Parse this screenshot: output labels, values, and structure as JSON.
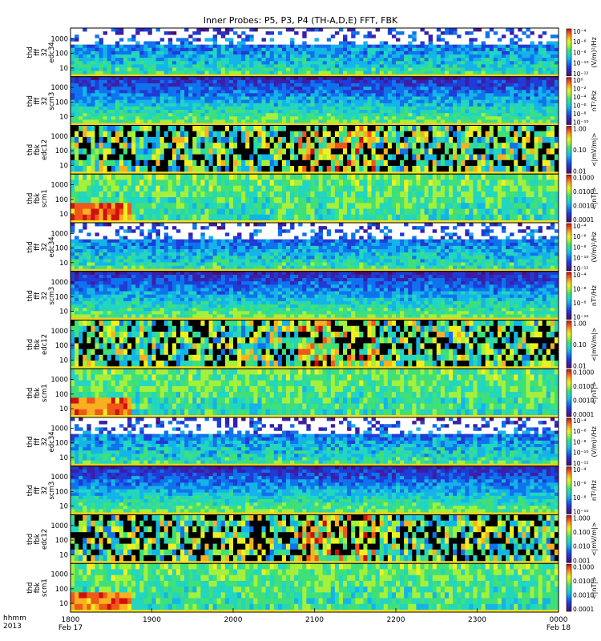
{
  "title": "Inner Probes: P5, P3, P4 (TH-A,D,E) FFT, FBK",
  "panels": [
    {
      "label": [
        "thd",
        "fff",
        "32",
        "edc34"
      ],
      "kind": "fft_e",
      "units": "(V/m)²/Hz",
      "cbar_ticks": [
        "10⁻⁴",
        "10⁻⁶",
        "10⁻⁸",
        "10⁻¹⁰",
        "10⁻¹²"
      ]
    },
    {
      "label": [
        "thd",
        "fff",
        "32",
        "scm3"
      ],
      "kind": "fft_b",
      "units": "nT²/Hz",
      "cbar_ticks": [
        "10⁰",
        "10⁻²",
        "10⁻⁴",
        "10⁻⁶",
        "10⁻⁸",
        "10⁻¹⁰"
      ]
    },
    {
      "label": [
        "thd",
        "fbk",
        "edc12"
      ],
      "kind": "fbk_e",
      "units": "<|mV/m|>",
      "cbar_ticks": [
        "1.00",
        "0.10",
        "0.01"
      ]
    },
    {
      "label": [
        "thd",
        "fbk",
        "scm1"
      ],
      "kind": "fbk_b",
      "units": "<|nT|>",
      "cbar_ticks": [
        "0.1000",
        "0.0100",
        "0.0010",
        "0.0001"
      ]
    },
    {
      "label": [
        "thd",
        "fff",
        "32",
        "edc34"
      ],
      "kind": "fft_e",
      "units": "(V/m)²/Hz",
      "cbar_ticks": [
        "10⁻⁴",
        "10⁻⁶",
        "10⁻⁸",
        "10⁻¹⁰",
        "10⁻¹²"
      ]
    },
    {
      "label": [
        "thd",
        "fff",
        "32",
        "scm3"
      ],
      "kind": "fft_b",
      "units": "nT²/Hz",
      "cbar_ticks": [
        "10⁻⁴",
        "10⁻⁶",
        "10⁻⁸",
        "10⁻¹⁰"
      ]
    },
    {
      "label": [
        "thd",
        "fbk",
        "edc12"
      ],
      "kind": "fbk_e",
      "units": "<|mV/m|>",
      "cbar_ticks": [
        "1.00",
        "0.10",
        "0.01"
      ]
    },
    {
      "label": [
        "thd",
        "fbk",
        "scm1"
      ],
      "kind": "fbk_b",
      "units": "<|nT|>",
      "cbar_ticks": [
        "0.1000",
        "0.0100",
        "0.0010",
        "0.0001"
      ]
    },
    {
      "label": [
        "thd",
        "fff",
        "32",
        "edc34"
      ],
      "kind": "fft_e",
      "units": "(V/m)²/Hz",
      "cbar_ticks": [
        "10⁻⁴",
        "10⁻⁶",
        "10⁻⁸",
        "10⁻¹⁰",
        "10⁻¹²"
      ]
    },
    {
      "label": [
        "thd",
        "fff",
        "32",
        "scm3"
      ],
      "kind": "fft_b",
      "units": "nT²/Hz",
      "cbar_ticks": [
        "10⁻⁴",
        "10⁻⁶",
        "10⁻⁸",
        "10⁻¹⁰"
      ]
    },
    {
      "label": [
        "thd",
        "fbk",
        "edc12"
      ],
      "kind": "fbk_e",
      "units": "<|mV/m|>",
      "cbar_ticks": [
        "1.000",
        "0.100",
        "0.010",
        "0.001"
      ]
    },
    {
      "label": [
        "thd",
        "fbk",
        "scm1"
      ],
      "kind": "fbk_b",
      "units": "<|nT|>",
      "cbar_ticks": [
        "0.1000",
        "0.0100",
        "0.0010",
        "0.0001"
      ]
    }
  ],
  "y_ticks": [
    "1000",
    "100",
    "10"
  ],
  "x_axis": {
    "row_label_1": "hhmm",
    "row_label_2": "2013",
    "ticks": [
      "1800",
      "1900",
      "2000",
      "2100",
      "2200",
      "2300",
      "0000"
    ],
    "dates": [
      "Feb 17",
      "Feb 18"
    ]
  },
  "chart_data": {
    "type": "heatmap",
    "title": "Inner Probes: P5, P3, P4 (TH-A,D,E) FFT, FBK",
    "xlabel": "hhmm",
    "x_range": [
      "2013-02-17 18:00",
      "2013-02-18 00:00"
    ],
    "x_ticks": [
      "1800",
      "1900",
      "2000",
      "2100",
      "2200",
      "2300",
      "0000"
    ],
    "y_scale": "log",
    "y_ticks": [
      1000,
      100,
      10
    ],
    "panel_count": 12,
    "colormap": "rainbow (purple-blue-cyan-green-yellow-red)"
  }
}
